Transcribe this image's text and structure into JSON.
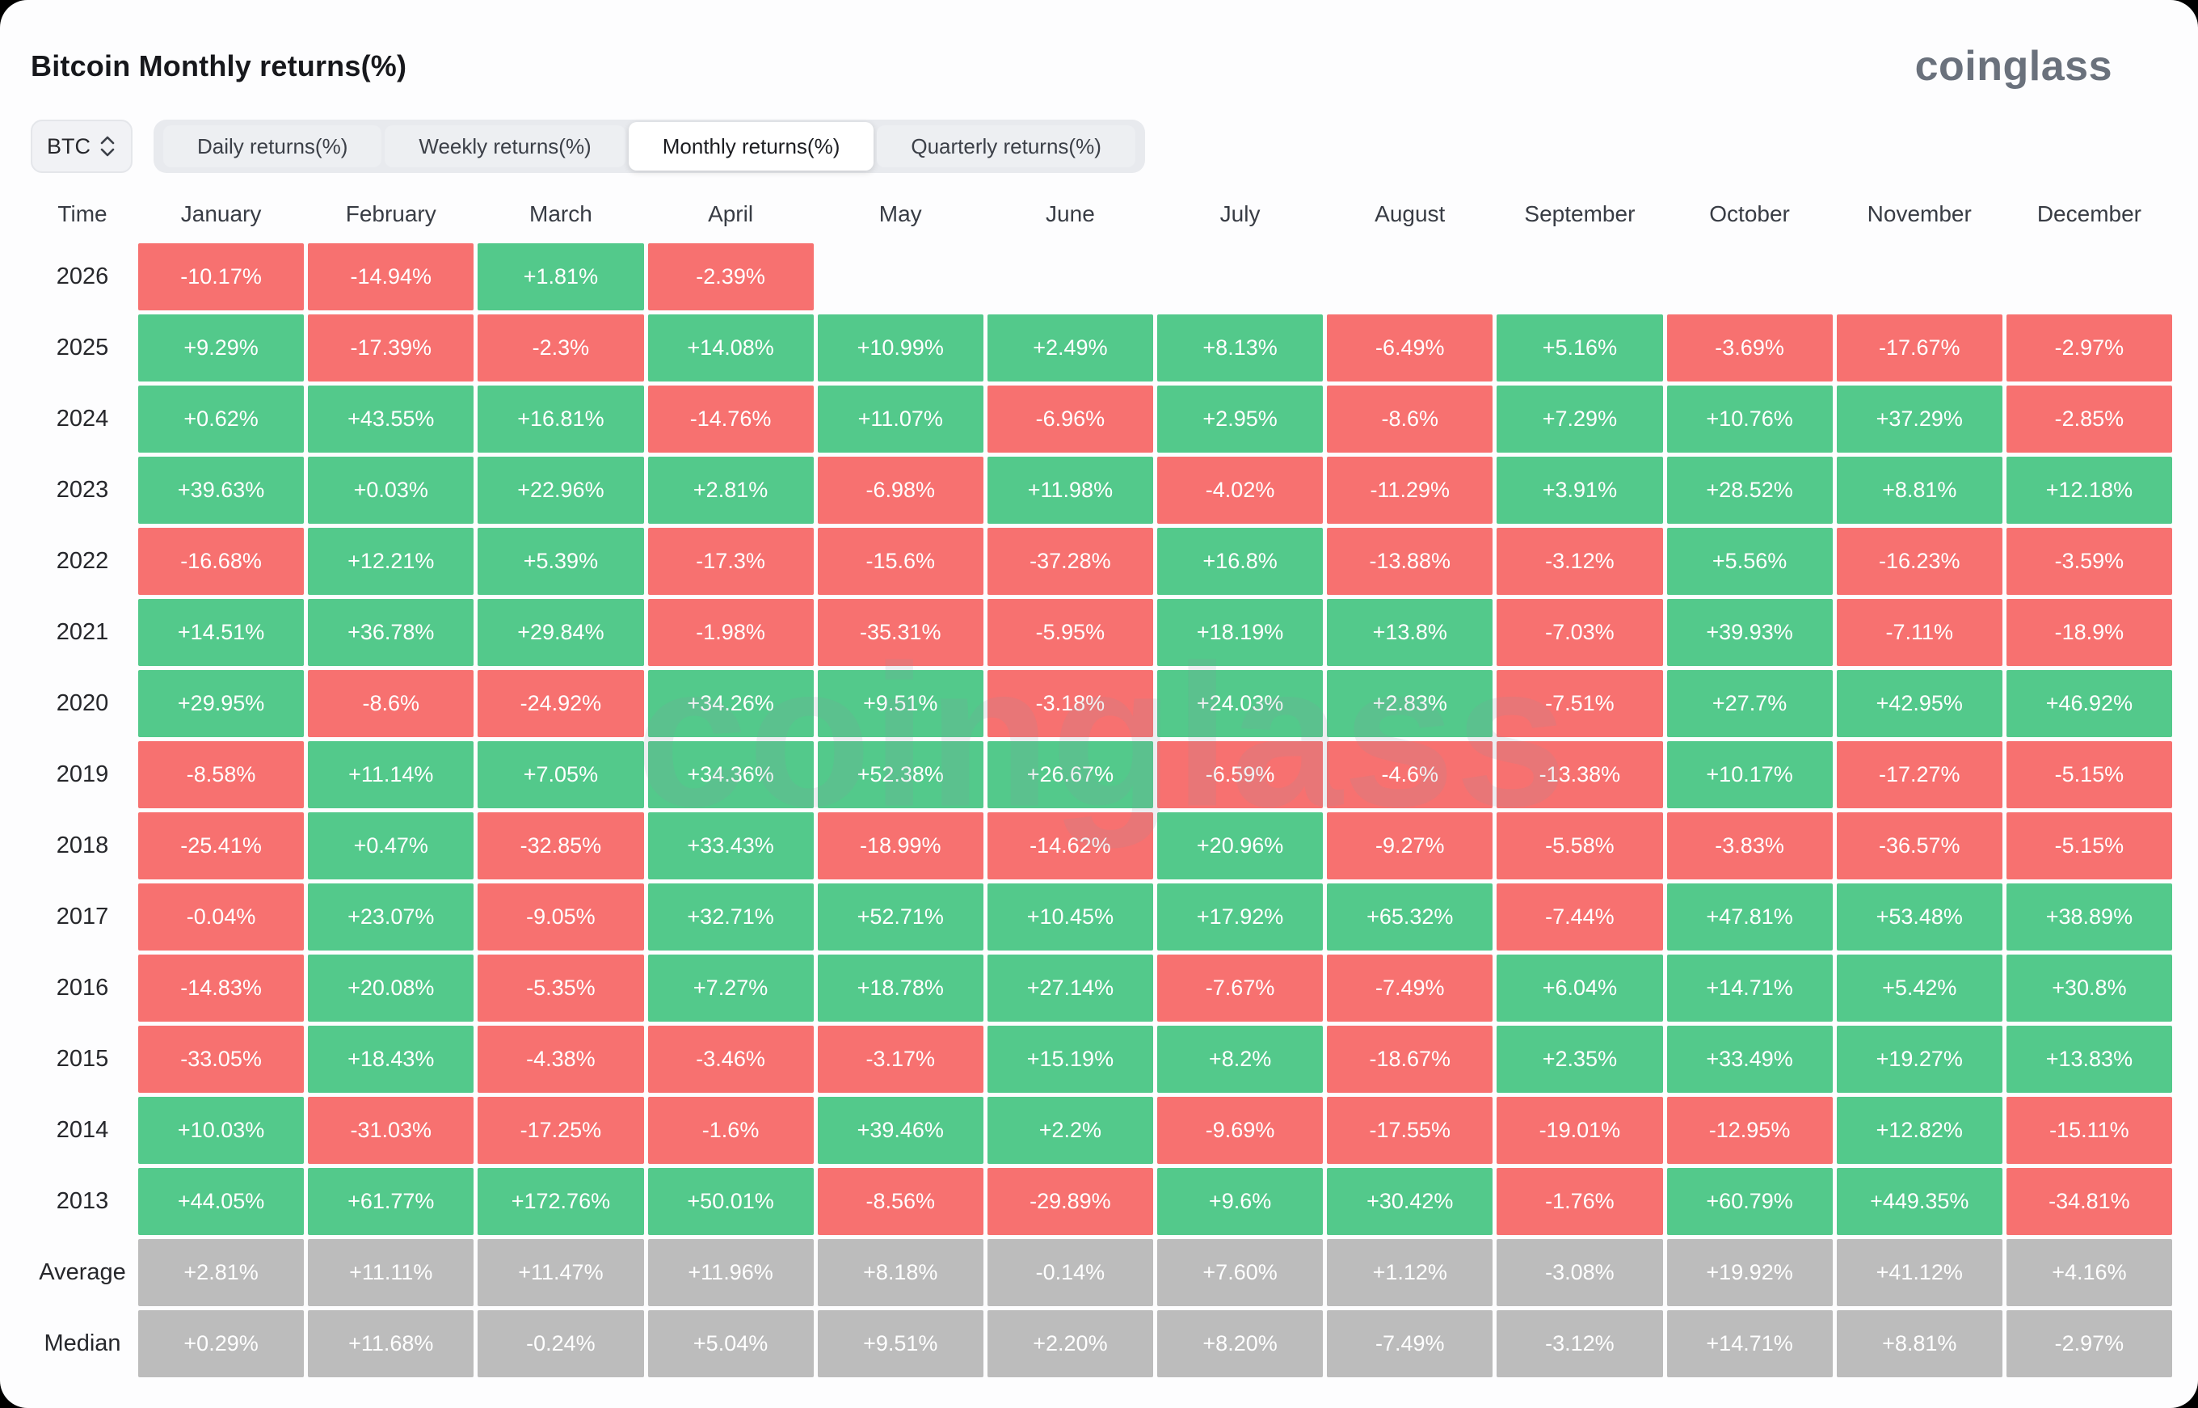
{
  "page": {
    "title": "Bitcoin Monthly returns(%)",
    "brand": "coinglass",
    "watermark": "coinglass"
  },
  "controls": {
    "symbol_select": {
      "value": "BTC"
    },
    "tabs": [
      {
        "label": "Daily returns(%)",
        "active": false
      },
      {
        "label": "Weekly returns(%)",
        "active": false
      },
      {
        "label": "Monthly returns(%)",
        "active": true
      },
      {
        "label": "Quarterly returns(%)",
        "active": false
      }
    ]
  },
  "colors": {
    "positive": "#53c98b",
    "negative": "#f77170",
    "summary": "#bcbcbc",
    "cell_text": "#ffffff"
  },
  "chart_data": {
    "type": "heatmap",
    "title": "Bitcoin Monthly returns(%)",
    "unit": "percent",
    "legend": "green = positive monthly return, red = negative monthly return, gray = summary rows",
    "columns": [
      "Time",
      "January",
      "February",
      "March",
      "April",
      "May",
      "June",
      "July",
      "August",
      "September",
      "October",
      "November",
      "December"
    ],
    "rows": [
      {
        "label": "2026",
        "type": "year",
        "values": [
          "-10.17%",
          "-14.94%",
          "+1.81%",
          "-2.39%",
          null,
          null,
          null,
          null,
          null,
          null,
          null,
          null
        ]
      },
      {
        "label": "2025",
        "type": "year",
        "values": [
          "+9.29%",
          "-17.39%",
          "-2.3%",
          "+14.08%",
          "+10.99%",
          "+2.49%",
          "+8.13%",
          "-6.49%",
          "+5.16%",
          "-3.69%",
          "-17.67%",
          "-2.97%"
        ]
      },
      {
        "label": "2024",
        "type": "year",
        "values": [
          "+0.62%",
          "+43.55%",
          "+16.81%",
          "-14.76%",
          "+11.07%",
          "-6.96%",
          "+2.95%",
          "-8.6%",
          "+7.29%",
          "+10.76%",
          "+37.29%",
          "-2.85%"
        ]
      },
      {
        "label": "2023",
        "type": "year",
        "values": [
          "+39.63%",
          "+0.03%",
          "+22.96%",
          "+2.81%",
          "-6.98%",
          "+11.98%",
          "-4.02%",
          "-11.29%",
          "+3.91%",
          "+28.52%",
          "+8.81%",
          "+12.18%"
        ]
      },
      {
        "label": "2022",
        "type": "year",
        "values": [
          "-16.68%",
          "+12.21%",
          "+5.39%",
          "-17.3%",
          "-15.6%",
          "-37.28%",
          "+16.8%",
          "-13.88%",
          "-3.12%",
          "+5.56%",
          "-16.23%",
          "-3.59%"
        ]
      },
      {
        "label": "2021",
        "type": "year",
        "values": [
          "+14.51%",
          "+36.78%",
          "+29.84%",
          "-1.98%",
          "-35.31%",
          "-5.95%",
          "+18.19%",
          "+13.8%",
          "-7.03%",
          "+39.93%",
          "-7.11%",
          "-18.9%"
        ]
      },
      {
        "label": "2020",
        "type": "year",
        "values": [
          "+29.95%",
          "-8.6%",
          "-24.92%",
          "+34.26%",
          "+9.51%",
          "-3.18%",
          "+24.03%",
          "+2.83%",
          "-7.51%",
          "+27.7%",
          "+42.95%",
          "+46.92%"
        ]
      },
      {
        "label": "2019",
        "type": "year",
        "values": [
          "-8.58%",
          "+11.14%",
          "+7.05%",
          "+34.36%",
          "+52.38%",
          "+26.67%",
          "-6.59%",
          "-4.6%",
          "-13.38%",
          "+10.17%",
          "-17.27%",
          "-5.15%"
        ]
      },
      {
        "label": "2018",
        "type": "year",
        "values": [
          "-25.41%",
          "+0.47%",
          "-32.85%",
          "+33.43%",
          "-18.99%",
          "-14.62%",
          "+20.96%",
          "-9.27%",
          "-5.58%",
          "-3.83%",
          "-36.57%",
          "-5.15%"
        ]
      },
      {
        "label": "2017",
        "type": "year",
        "values": [
          "-0.04%",
          "+23.07%",
          "-9.05%",
          "+32.71%",
          "+52.71%",
          "+10.45%",
          "+17.92%",
          "+65.32%",
          "-7.44%",
          "+47.81%",
          "+53.48%",
          "+38.89%"
        ]
      },
      {
        "label": "2016",
        "type": "year",
        "values": [
          "-14.83%",
          "+20.08%",
          "-5.35%",
          "+7.27%",
          "+18.78%",
          "+27.14%",
          "-7.67%",
          "-7.49%",
          "+6.04%",
          "+14.71%",
          "+5.42%",
          "+30.8%"
        ]
      },
      {
        "label": "2015",
        "type": "year",
        "values": [
          "-33.05%",
          "+18.43%",
          "-4.38%",
          "-3.46%",
          "-3.17%",
          "+15.19%",
          "+8.2%",
          "-18.67%",
          "+2.35%",
          "+33.49%",
          "+19.27%",
          "+13.83%"
        ]
      },
      {
        "label": "2014",
        "type": "year",
        "values": [
          "+10.03%",
          "-31.03%",
          "-17.25%",
          "-1.6%",
          "+39.46%",
          "+2.2%",
          "-9.69%",
          "-17.55%",
          "-19.01%",
          "-12.95%",
          "+12.82%",
          "-15.11%"
        ]
      },
      {
        "label": "2013",
        "type": "year",
        "values": [
          "+44.05%",
          "+61.77%",
          "+172.76%",
          "+50.01%",
          "-8.56%",
          "-29.89%",
          "+9.6%",
          "+30.42%",
          "-1.76%",
          "+60.79%",
          "+449.35%",
          "-34.81%"
        ]
      },
      {
        "label": "Average",
        "type": "summary",
        "values": [
          "+2.81%",
          "+11.11%",
          "+11.47%",
          "+11.96%",
          "+8.18%",
          "-0.14%",
          "+7.60%",
          "+1.12%",
          "-3.08%",
          "+19.92%",
          "+41.12%",
          "+4.16%"
        ]
      },
      {
        "label": "Median",
        "type": "summary",
        "values": [
          "+0.29%",
          "+11.68%",
          "-0.24%",
          "+5.04%",
          "+9.51%",
          "+2.20%",
          "+8.20%",
          "-7.49%",
          "-3.12%",
          "+14.71%",
          "+8.81%",
          "-2.97%"
        ]
      }
    ]
  }
}
